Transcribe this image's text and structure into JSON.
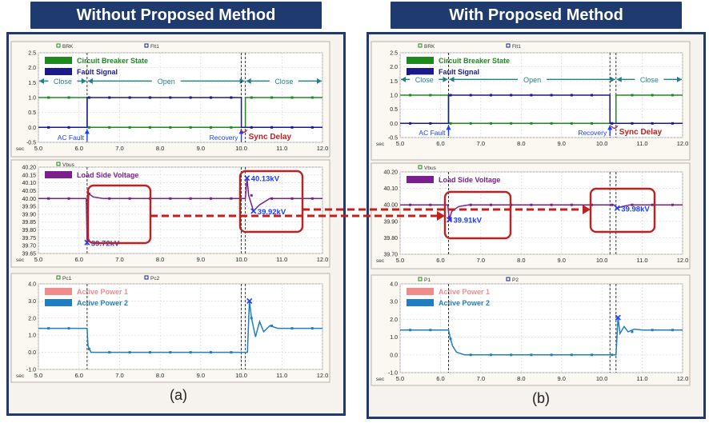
{
  "titles": {
    "left": "Without Proposed Method",
    "right": "With Proposed Method"
  },
  "captions": {
    "left": "(a)",
    "right": "(b)"
  },
  "colors": {
    "frame": "#1f3a6e",
    "breaker": "#1e8a1e",
    "fault": "#1a1a8c",
    "voltage": "#7b1f8f",
    "power1": "#f08c8c",
    "power2": "#1f7fc0",
    "highlight": "#c0201e",
    "marker": "#1a3cff",
    "annotation_red": "#c0201e",
    "annotation_blue": "#1a3cff"
  },
  "chart_data": [
    {
      "id": "a-brk",
      "type": "line",
      "header": [
        "BRK",
        "Flt1"
      ],
      "legend": [
        "Circuit Breaker State",
        "Fault Signal"
      ],
      "xlim": [
        5.0,
        12.0
      ],
      "xticks": [
        "5.0",
        "6.0",
        "7.0",
        "8.0",
        "9.0",
        "10.0",
        "11.0",
        "12.0"
      ],
      "xunit": "sec",
      "ylim": [
        -0.5,
        2.5
      ],
      "yticks": [
        "2.5",
        "2.0",
        "1.5",
        "1.0",
        "0.5",
        "0.0",
        "-0.5"
      ],
      "series": [
        {
          "name": "Circuit Breaker State",
          "x": [
            5.0,
            6.2,
            6.2,
            10.1,
            10.1,
            12.0
          ],
          "y": [
            1,
            1,
            0,
            0,
            1,
            1
          ]
        },
        {
          "name": "Fault Signal",
          "x": [
            5.0,
            6.2,
            6.2,
            10.0,
            10.0,
            12.0
          ],
          "y": [
            0,
            0,
            1,
            1,
            0,
            0
          ]
        }
      ],
      "spans": [
        {
          "label": "Close",
          "x": [
            5.0,
            6.2
          ]
        },
        {
          "label": "Open",
          "x": [
            6.2,
            10.1
          ]
        },
        {
          "label": "Close",
          "x": [
            10.1,
            12.0
          ]
        }
      ],
      "annotations": [
        {
          "text": "AC Fault",
          "x": 6.2
        },
        {
          "text": "Recovery",
          "x": 10.0
        },
        {
          "text": "Sync Delay",
          "x": 10.1
        }
      ]
    },
    {
      "id": "a-vbus",
      "type": "line",
      "header": [
        "Vbus"
      ],
      "legend": [
        "Load Side Voltage"
      ],
      "xlim": [
        5.0,
        12.0
      ],
      "xticks": [
        "5.0",
        "6.0",
        "7.0",
        "8.0",
        "9.0",
        "10.0",
        "11.0",
        "12.0"
      ],
      "xunit": "sec",
      "ylim": [
        39.65,
        40.2
      ],
      "yticks": [
        "40.20",
        "40.15",
        "40.10",
        "40.05",
        "40.00",
        "39.95",
        "39.90",
        "39.85",
        "39.80",
        "39.75",
        "39.70",
        "39.65"
      ],
      "series": [
        {
          "name": "Load Side Voltage",
          "x": [
            5.0,
            6.18,
            6.2,
            6.24,
            6.35,
            6.6,
            7.0,
            10.1,
            10.14,
            10.18,
            10.3,
            10.45,
            10.7,
            12.0
          ],
          "y": [
            40.0,
            40.0,
            39.72,
            40.03,
            40.01,
            40.0,
            40.0,
            40.0,
            40.13,
            40.02,
            39.92,
            39.96,
            40.0,
            40.0
          ]
        }
      ],
      "points": [
        {
          "label": "39.72kV",
          "x": 6.2,
          "y": 39.72
        },
        {
          "label": "40.13kV",
          "x": 10.14,
          "y": 40.13
        },
        {
          "label": "39.92kV",
          "x": 10.3,
          "y": 39.92
        }
      ]
    },
    {
      "id": "a-pc",
      "type": "line",
      "header": [
        "Pc1",
        "Pc2"
      ],
      "legend": [
        "Active Power 1",
        "Active Power 2"
      ],
      "xlim": [
        5.0,
        12.0
      ],
      "xticks": [
        "5.0",
        "6.0",
        "7.0",
        "8.0",
        "9.0",
        "10.0",
        "11.0",
        "12.0"
      ],
      "xunit": "sec",
      "ylim": [
        -1.0,
        4.0
      ],
      "yticks": [
        "4.0",
        "3.0",
        "2.0",
        "1.0",
        "0.0",
        "-1.0"
      ],
      "series": [
        {
          "name": "Active Power",
          "x": [
            5.0,
            6.2,
            6.22,
            6.25,
            6.3,
            10.15,
            10.2,
            10.25,
            10.35,
            10.45,
            10.55,
            10.7,
            10.9,
            12.0
          ],
          "y": [
            1.4,
            1.4,
            0.4,
            0.2,
            0.0,
            0.0,
            3.0,
            2.0,
            0.9,
            1.8,
            1.2,
            1.55,
            1.4,
            1.4
          ]
        }
      ],
      "points": [
        {
          "x": 10.2,
          "y": 3.0
        }
      ]
    },
    {
      "id": "b-brk",
      "type": "line",
      "header": [
        "BRK",
        "Flt1"
      ],
      "legend": [
        "Circuit Breaker State",
        "Fault Signal"
      ],
      "xlim": [
        5.0,
        12.0
      ],
      "xticks": [
        "5.0",
        "6.0",
        "7.0",
        "8.0",
        "9.0",
        "10.0",
        "11.0",
        "12.0"
      ],
      "xunit": "sec",
      "ylim": [
        -0.5,
        2.5
      ],
      "yticks": [
        "2.5",
        "2.0",
        "1.5",
        "1.0",
        "0.5",
        "0.0",
        "-0.5"
      ],
      "series": [
        {
          "name": "Circuit Breaker State",
          "x": [
            5.0,
            6.2,
            6.2,
            10.35,
            10.35,
            12.0
          ],
          "y": [
            1,
            1,
            0,
            0,
            1,
            1
          ]
        },
        {
          "name": "Fault Signal",
          "x": [
            5.0,
            6.2,
            6.2,
            10.2,
            10.2,
            12.0
          ],
          "y": [
            0,
            0,
            1,
            1,
            0,
            0
          ]
        }
      ],
      "spans": [
        {
          "label": "Close",
          "x": [
            5.0,
            6.2
          ]
        },
        {
          "label": "Open",
          "x": [
            6.2,
            10.35
          ]
        },
        {
          "label": "Close",
          "x": [
            10.35,
            12.0
          ]
        }
      ],
      "annotations": [
        {
          "text": "AC Fault",
          "x": 6.2
        },
        {
          "text": "Recovery",
          "x": 10.2
        },
        {
          "text": "Sync Delay",
          "x": 10.35
        }
      ]
    },
    {
      "id": "b-vbus",
      "type": "line",
      "header": [
        "Vbus"
      ],
      "legend": [
        "Load Side Voltage"
      ],
      "xlim": [
        5.0,
        12.0
      ],
      "xticks": [
        "5.0",
        "6.0",
        "7.0",
        "8.0",
        "9.0",
        "10.0",
        "11.0",
        "12.0"
      ],
      "xunit": "sec",
      "ylim": [
        39.7,
        40.2
      ],
      "yticks": [
        "40.20",
        "40.10",
        "40.00",
        "39.90",
        "39.80",
        "39.70"
      ],
      "series": [
        {
          "name": "Load Side Voltage",
          "x": [
            5.0,
            6.18,
            6.22,
            6.28,
            6.45,
            6.7,
            7.0,
            10.3,
            10.38,
            10.5,
            10.7,
            12.0
          ],
          "y": [
            40.0,
            40.0,
            39.91,
            39.96,
            39.99,
            40.0,
            40.0,
            40.0,
            39.98,
            39.99,
            40.0,
            40.0
          ]
        }
      ],
      "points": [
        {
          "label": "39.91kV",
          "x": 6.22,
          "y": 39.91
        },
        {
          "label": "39.98kV",
          "x": 10.38,
          "y": 39.98
        }
      ]
    },
    {
      "id": "b-p",
      "type": "line",
      "header": [
        "P1",
        "P2"
      ],
      "legend": [
        "Active Power 1",
        "Active Power 2"
      ],
      "xlim": [
        5.0,
        12.0
      ],
      "xticks": [
        "5.0",
        "6.0",
        "7.0",
        "8.0",
        "9.0",
        "10.0",
        "11.0",
        "12.0"
      ],
      "xunit": "sec",
      "ylim": [
        -1.0,
        4.0
      ],
      "yticks": [
        "4.0",
        "3.0",
        "2.0",
        "1.0",
        "0.0",
        "-1.0"
      ],
      "series": [
        {
          "name": "Active Power",
          "x": [
            5.0,
            6.2,
            6.25,
            6.3,
            6.4,
            6.6,
            10.35,
            10.4,
            10.45,
            10.55,
            10.65,
            10.8,
            11.0,
            12.0
          ],
          "y": [
            1.4,
            1.4,
            0.9,
            0.5,
            0.15,
            0.0,
            0.0,
            2.1,
            1.2,
            1.6,
            1.3,
            1.45,
            1.4,
            1.4
          ]
        }
      ],
      "points": [
        {
          "x": 10.4,
          "y": 2.1
        }
      ]
    }
  ]
}
